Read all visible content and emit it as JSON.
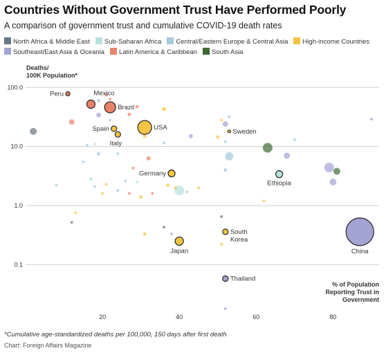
{
  "title": "Countries Without Government Trust Have Performed Poorly",
  "subtitle": "A comparison of government trust and cumulative COVID-19 death rates",
  "legend": [
    {
      "label": "North Africa & Middle East",
      "color": "#6b7785"
    },
    {
      "label": "Sub-Saharan Africa",
      "color": "#b8e3dc"
    },
    {
      "label": "Central/Eastern Europe & Central Asia",
      "color": "#a8c8dc"
    },
    {
      "label": "High-income Countries",
      "color": "#f5c445"
    },
    {
      "label": "Southeast/East Asia & Oceania",
      "color": "#a3a3d4"
    },
    {
      "label": "Latin America & Caribbean",
      "color": "#e8836a"
    },
    {
      "label": "South Asia",
      "color": "#3e6b34"
    }
  ],
  "footnote": "*Cumulative age-standardized deaths per 100,000, 150 days after first death",
  "source": "Chart: Foreign Affairs Magazine",
  "chart_data": {
    "type": "scatter",
    "xlabel": "% of Population Reporting Trust in Government",
    "ylabel": "Deaths/ 100K Population*",
    "ylabel_lines": [
      "Deaths/",
      "100K Population*"
    ],
    "xlabel_lines": [
      "% of Population",
      "Reporting Trust in",
      "Government"
    ],
    "xlim": [
      0,
      92
    ],
    "ylim": [
      0.017,
      125
    ],
    "yscale": "log",
    "xticks": [
      20,
      40,
      60,
      80
    ],
    "xtick_labels": [
      "20",
      "40",
      "60",
      "80"
    ],
    "yticks": [
      0.1,
      1,
      10,
      100
    ],
    "ytick_labels": [
      "0.1",
      "1.0",
      "10.0",
      "100.0"
    ],
    "grid": "horizontal",
    "highlighted": [
      {
        "name": "Peru",
        "x": 11,
        "y": 78,
        "region": "Latin America & Caribbean",
        "size": 3,
        "label_pos": "left"
      },
      {
        "name": "Mexico",
        "x": 17,
        "y": 52,
        "region": "Latin America & Caribbean",
        "size": 6,
        "label_pos": "top-right"
      },
      {
        "name": "Brazil",
        "x": 22,
        "y": 46,
        "region": "Latin America & Caribbean",
        "size": 8,
        "label_pos": "right"
      },
      {
        "name": "Spain",
        "x": 23,
        "y": 20,
        "region": "High-income Countries",
        "size": 4,
        "label_pos": "left"
      },
      {
        "name": "Italy",
        "x": 24,
        "y": 16,
        "region": "High-income Countries",
        "size": 4,
        "label_pos": "bottom-left"
      },
      {
        "name": "USA",
        "x": 31,
        "y": 21,
        "region": "High-income Countries",
        "size": 10,
        "label_pos": "right"
      },
      {
        "name": "Sweden",
        "x": 53,
        "y": 18,
        "region": "High-income Countries",
        "size": 2,
        "label_pos": "right"
      },
      {
        "name": "Germany",
        "x": 38,
        "y": 3.5,
        "region": "High-income Countries",
        "size": 5,
        "label_pos": "left"
      },
      {
        "name": "Ethiopia",
        "x": 66,
        "y": 3.4,
        "region": "Sub-Saharan Africa",
        "size": 5,
        "label_pos": "bottom"
      },
      {
        "name": "South Korea",
        "x": 52,
        "y": 0.36,
        "region": "High-income Countries",
        "size": 4,
        "label_pos": "right"
      },
      {
        "name": "Japan",
        "x": 40,
        "y": 0.25,
        "region": "High-income Countries",
        "size": 6,
        "label_pos": "bottom"
      },
      {
        "name": "China",
        "x": 87,
        "y": 0.36,
        "region": "Southeast/East Asia & Oceania",
        "size": 20,
        "label_pos": "bottom"
      },
      {
        "name": "Thailand",
        "x": 52,
        "y": 0.058,
        "region": "Southeast/East Asia & Oceania",
        "size": 4,
        "label_pos": "right"
      }
    ],
    "other_points": [
      {
        "x": 2,
        "y": 18,
        "region": "North Africa & Middle East",
        "size": 5
      },
      {
        "x": 12,
        "y": 26,
        "region": "Latin America & Caribbean",
        "size": 4
      },
      {
        "x": 21,
        "y": 75,
        "region": "Latin America & Caribbean",
        "size": 2.5
      },
      {
        "x": 22,
        "y": 63,
        "region": "Latin America & Caribbean",
        "size": 2
      },
      {
        "x": 19,
        "y": 60,
        "region": "Central/Eastern Europe & Central Asia",
        "size": 2.5
      },
      {
        "x": 19,
        "y": 34,
        "region": "Southeast/East Asia & Oceania",
        "size": 3.5
      },
      {
        "x": 22,
        "y": 28,
        "region": "Central/Eastern Europe & Central Asia",
        "size": 2
      },
      {
        "x": 27,
        "y": 35,
        "region": "Latin America & Caribbean",
        "size": 2.5
      },
      {
        "x": 29,
        "y": 47,
        "region": "Latin America & Caribbean",
        "size": 2.5
      },
      {
        "x": 36,
        "y": 43,
        "region": "High-income Countries",
        "size": 3
      },
      {
        "x": 16,
        "y": 10.5,
        "region": "Central/Eastern Europe & Central Asia",
        "size": 2
      },
      {
        "x": 18,
        "y": 11,
        "region": "Sub-Saharan Africa",
        "size": 2
      },
      {
        "x": 19,
        "y": 7.5,
        "region": "Central/Eastern Europe & Central Asia",
        "size": 2.5
      },
      {
        "x": 15,
        "y": 5.5,
        "region": "Central/Eastern Europe & Central Asia",
        "size": 2
      },
      {
        "x": 24,
        "y": 7.5,
        "region": "Central/Eastern Europe & Central Asia",
        "size": 2
      },
      {
        "x": 28,
        "y": 4.3,
        "region": "Latin America & Caribbean",
        "size": 2
      },
      {
        "x": 32,
        "y": 6.3,
        "region": "Latin America & Caribbean",
        "size": 3
      },
      {
        "x": 31,
        "y": 15,
        "region": "High-income Countries",
        "size": 2.5
      },
      {
        "x": 36,
        "y": 11.5,
        "region": "Central/Eastern Europe & Central Asia",
        "size": 2
      },
      {
        "x": 43,
        "y": 15,
        "region": "Southeast/East Asia & Oceania",
        "size": 3
      },
      {
        "x": 51,
        "y": 28,
        "region": "High-income Countries",
        "size": 2
      },
      {
        "x": 52,
        "y": 24,
        "region": "Southeast/East Asia & Oceania",
        "size": 4
      },
      {
        "x": 53,
        "y": 32,
        "region": "Central/Eastern Europe & Central Asia",
        "size": 2
      },
      {
        "x": 50,
        "y": 14.5,
        "region": "High-income Countries",
        "size": 2.5
      },
      {
        "x": 52,
        "y": 12,
        "region": "Central/Eastern Europe & Central Asia",
        "size": 2
      },
      {
        "x": 53,
        "y": 6.8,
        "region": "Central/Eastern Europe & Central Asia",
        "size": 6
      },
      {
        "x": 52,
        "y": 4,
        "region": "Central/Eastern Europe & Central Asia",
        "size": 2.5
      },
      {
        "x": 63,
        "y": 9.5,
        "region": "South Asia",
        "size": 7
      },
      {
        "x": 68,
        "y": 7,
        "region": "Southeast/East Asia & Oceania",
        "size": 4.5
      },
      {
        "x": 70,
        "y": 13,
        "region": "Central/Eastern Europe & Central Asia",
        "size": 2
      },
      {
        "x": 79,
        "y": 4.4,
        "region": "Southeast/East Asia & Oceania",
        "size": 7
      },
      {
        "x": 81,
        "y": 3.8,
        "region": "South Asia",
        "size": 5
      },
      {
        "x": 80,
        "y": 2.5,
        "region": "Southeast/East Asia & Oceania",
        "size": 5
      },
      {
        "x": 90,
        "y": 29,
        "region": "Southeast/East Asia & Oceania",
        "size": 2
      },
      {
        "x": 40,
        "y": 1.8,
        "region": "Sub-Saharan Africa",
        "size": 7
      },
      {
        "x": 37,
        "y": 2.2,
        "region": "High-income Countries",
        "size": 2.5
      },
      {
        "x": 26,
        "y": 2.6,
        "region": "Central/Eastern Europe & Central Asia",
        "size": 2
      },
      {
        "x": 29,
        "y": 2.5,
        "region": "Sub-Saharan Africa",
        "size": 2
      },
      {
        "x": 30,
        "y": 1.4,
        "region": "High-income Countries",
        "size": 2.5
      },
      {
        "x": 33,
        "y": 1.6,
        "region": "Latin America & Caribbean",
        "size": 2
      },
      {
        "x": 45,
        "y": 2,
        "region": "High-income Countries",
        "size": 2
      },
      {
        "x": 39,
        "y": 2,
        "region": "High-income Countries",
        "size": 2
      },
      {
        "x": 42,
        "y": 1.7,
        "region": "Central/Eastern Europe & Central Asia",
        "size": 2
      },
      {
        "x": 24,
        "y": 1.8,
        "region": "Central/Eastern Europe & Central Asia",
        "size": 2
      },
      {
        "x": 27,
        "y": 1.6,
        "region": "Latin America & Caribbean",
        "size": 2
      },
      {
        "x": 21,
        "y": 2.3,
        "region": "High-income Countries",
        "size": 2
      },
      {
        "x": 20,
        "y": 1.6,
        "region": "High-income Countries",
        "size": 2
      },
      {
        "x": 17,
        "y": 2.8,
        "region": "Sub-Saharan Africa",
        "size": 2.5
      },
      {
        "x": 8,
        "y": 2.2,
        "region": "Central/Eastern Europe & Central Asia",
        "size": 2
      },
      {
        "x": 18,
        "y": 2.1,
        "region": "Central/Eastern Europe & Central Asia",
        "size": 2
      },
      {
        "x": 12,
        "y": 0.52,
        "region": "North Africa & Middle East",
        "size": 2
      },
      {
        "x": 13,
        "y": 0.75,
        "region": "High-income Countries",
        "size": 2
      },
      {
        "x": 36,
        "y": 0.43,
        "region": "North Africa & Middle East",
        "size": 2
      },
      {
        "x": 31,
        "y": 0.33,
        "region": "High-income Countries",
        "size": 2.5
      },
      {
        "x": 38,
        "y": 0.33,
        "region": "Southeast/East Asia & Oceania",
        "size": 2
      },
      {
        "x": 51,
        "y": 0.65,
        "region": "North Africa & Middle East",
        "size": 2
      },
      {
        "x": 51,
        "y": 0.22,
        "region": "High-income Countries",
        "size": 2
      },
      {
        "x": 52,
        "y": 0.018,
        "region": "Southeast/East Asia & Oceania",
        "size": 2
      },
      {
        "x": 62,
        "y": 1.2,
        "region": "High-income Countries",
        "size": 2
      }
    ]
  }
}
